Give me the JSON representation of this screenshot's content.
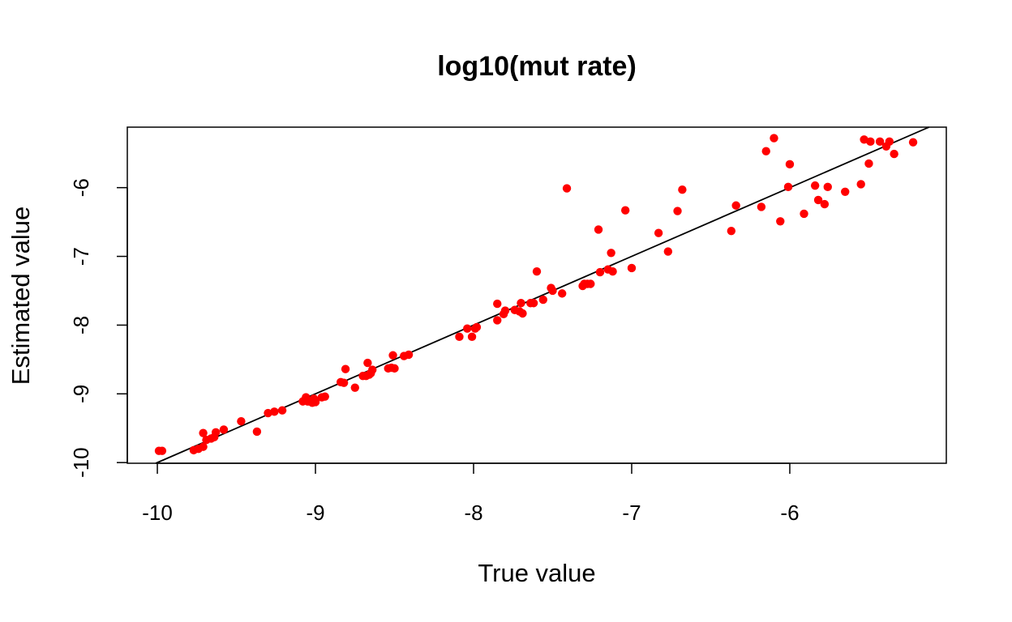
{
  "chart_data": {
    "type": "scatter",
    "title": "log10(mut rate)",
    "xlabel": "True value",
    "ylabel": "Estimated value",
    "xlim": [
      -10.19,
      -5.01
    ],
    "ylim": [
      -10.01,
      -5.12
    ],
    "xticks": [
      -10,
      -9,
      -8,
      -7,
      -6
    ],
    "yticks": [
      -10,
      -9,
      -8,
      -7,
      -6
    ],
    "point_color": "#ff0000",
    "line_color": "#000000",
    "reference_line": {
      "slope": 1,
      "intercept": 0
    },
    "grid": false,
    "legend": "none",
    "points": [
      [
        -9.99,
        -9.83
      ],
      [
        -9.97,
        -9.83
      ],
      [
        -9.77,
        -9.82
      ],
      [
        -9.74,
        -9.8
      ],
      [
        -9.71,
        -9.77
      ],
      [
        -9.71,
        -9.57
      ],
      [
        -9.69,
        -9.67
      ],
      [
        -9.66,
        -9.65
      ],
      [
        -9.64,
        -9.63
      ],
      [
        -9.63,
        -9.56
      ],
      [
        -9.58,
        -9.52
      ],
      [
        -9.47,
        -9.4
      ],
      [
        -9.37,
        -9.55
      ],
      [
        -9.3,
        -9.28
      ],
      [
        -9.26,
        -9.26
      ],
      [
        -9.21,
        -9.24
      ],
      [
        -9.08,
        -9.11
      ],
      [
        -9.06,
        -9.05
      ],
      [
        -9.05,
        -9.11
      ],
      [
        -9.03,
        -9.11
      ],
      [
        -9.02,
        -9.13
      ],
      [
        -9.01,
        -9.07
      ],
      [
        -9.0,
        -9.12
      ],
      [
        -8.96,
        -9.05
      ],
      [
        -8.94,
        -9.04
      ],
      [
        -8.84,
        -8.83
      ],
      [
        -8.82,
        -8.84
      ],
      [
        -8.81,
        -8.64
      ],
      [
        -8.75,
        -8.91
      ],
      [
        -8.7,
        -8.74
      ],
      [
        -8.68,
        -8.74
      ],
      [
        -8.67,
        -8.55
      ],
      [
        -8.66,
        -8.72
      ],
      [
        -8.65,
        -8.7
      ],
      [
        -8.64,
        -8.65
      ],
      [
        -8.54,
        -8.63
      ],
      [
        -8.52,
        -8.62
      ],
      [
        -8.51,
        -8.44
      ],
      [
        -8.5,
        -8.63
      ],
      [
        -8.44,
        -8.45
      ],
      [
        -8.41,
        -8.43
      ],
      [
        -8.09,
        -8.17
      ],
      [
        -8.04,
        -8.05
      ],
      [
        -8.01,
        -8.17
      ],
      [
        -7.99,
        -8.05
      ],
      [
        -7.98,
        -8.03
      ],
      [
        -7.85,
        -7.69
      ],
      [
        -7.85,
        -7.93
      ],
      [
        -7.81,
        -7.84
      ],
      [
        -7.8,
        -7.79
      ],
      [
        -7.74,
        -7.78
      ],
      [
        -7.71,
        -7.8
      ],
      [
        -7.7,
        -7.68
      ],
      [
        -7.69,
        -7.83
      ],
      [
        -7.64,
        -7.68
      ],
      [
        -7.62,
        -7.68
      ],
      [
        -7.6,
        -7.22
      ],
      [
        -7.56,
        -7.63
      ],
      [
        -7.51,
        -7.46
      ],
      [
        -7.5,
        -7.5
      ],
      [
        -7.44,
        -7.54
      ],
      [
        -7.41,
        -6.01
      ],
      [
        -7.31,
        -7.43
      ],
      [
        -7.3,
        -7.4
      ],
      [
        -7.28,
        -7.4
      ],
      [
        -7.26,
        -7.4
      ],
      [
        -7.21,
        -6.61
      ],
      [
        -7.2,
        -7.23
      ],
      [
        -7.15,
        -7.19
      ],
      [
        -7.13,
        -6.95
      ],
      [
        -7.12,
        -7.22
      ],
      [
        -7.04,
        -6.33
      ],
      [
        -7.0,
        -7.17
      ],
      [
        -6.83,
        -6.66
      ],
      [
        -6.77,
        -6.93
      ],
      [
        -6.71,
        -6.34
      ],
      [
        -6.68,
        -6.03
      ],
      [
        -6.37,
        -6.63
      ],
      [
        -6.34,
        -6.26
      ],
      [
        -6.18,
        -6.28
      ],
      [
        -6.15,
        -5.47
      ],
      [
        -6.1,
        -5.28
      ],
      [
        -6.06,
        -6.49
      ],
      [
        -6.01,
        -5.99
      ],
      [
        -6.0,
        -5.66
      ],
      [
        -5.91,
        -6.38
      ],
      [
        -5.84,
        -5.97
      ],
      [
        -5.82,
        -6.18
      ],
      [
        -5.78,
        -6.24
      ],
      [
        -5.76,
        -5.99
      ],
      [
        -5.65,
        -6.06
      ],
      [
        -5.55,
        -5.95
      ],
      [
        -5.53,
        -5.3
      ],
      [
        -5.5,
        -5.65
      ],
      [
        -5.49,
        -5.33
      ],
      [
        -5.43,
        -5.33
      ],
      [
        -5.39,
        -5.4
      ],
      [
        -5.37,
        -5.33
      ],
      [
        -5.34,
        -5.51
      ],
      [
        -5.22,
        -5.34
      ]
    ]
  }
}
